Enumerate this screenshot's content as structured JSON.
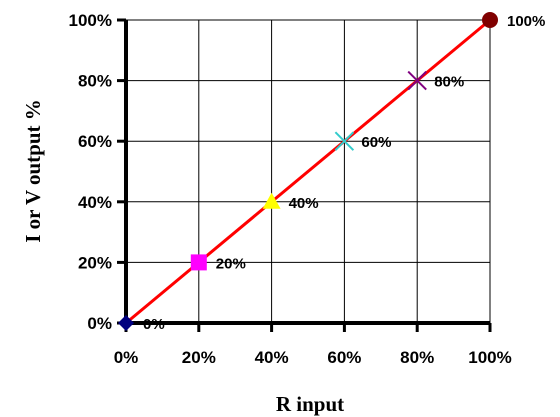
{
  "chart_data": {
    "type": "scatter",
    "title": "",
    "xlabel": "R input",
    "ylabel": "I  or V output %",
    "xlim": [
      0,
      100
    ],
    "ylim": [
      0,
      100
    ],
    "grid": true,
    "x_ticks": [
      "0%",
      "20%",
      "40%",
      "60%",
      "80%",
      "100%"
    ],
    "y_ticks": [
      "0%",
      "20%",
      "40%",
      "60%",
      "80%",
      "100%"
    ],
    "line": {
      "x": [
        0,
        100
      ],
      "y": [
        0,
        100
      ],
      "color": "#ff0000"
    },
    "points": [
      {
        "x": 0,
        "y": 0,
        "label": "0%",
        "marker": "diamond",
        "color": "#000080"
      },
      {
        "x": 20,
        "y": 20,
        "label": "20%",
        "marker": "square",
        "color": "#ff00ff"
      },
      {
        "x": 40,
        "y": 40,
        "label": "40%",
        "marker": "triangle",
        "color": "#ffff00"
      },
      {
        "x": 60,
        "y": 60,
        "label": "60%",
        "marker": "x",
        "color": "#33cccc"
      },
      {
        "x": 80,
        "y": 80,
        "label": "80%",
        "marker": "x",
        "color": "#800080"
      },
      {
        "x": 100,
        "y": 100,
        "label": "100%",
        "marker": "circle",
        "color": "#800000"
      }
    ]
  }
}
